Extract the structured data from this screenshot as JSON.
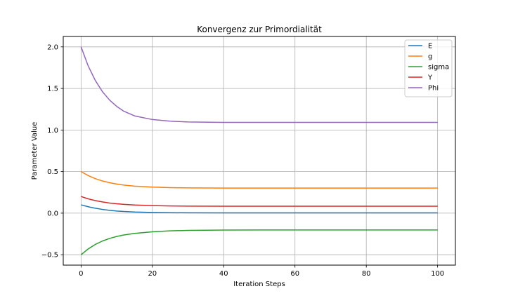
{
  "chart_data": {
    "type": "line",
    "title": "Konvergenz zur Primordialität",
    "xlabel": "Iteration Steps",
    "ylabel": "Parameter Value",
    "xlim": [
      -5,
      105
    ],
    "ylim": [
      -0.625,
      2.125
    ],
    "xticks": [
      0,
      20,
      40,
      60,
      80,
      100
    ],
    "yticks": [
      -0.5,
      0.0,
      0.5,
      1.0,
      1.5,
      2.0
    ],
    "xtick_labels": [
      "0",
      "20",
      "40",
      "60",
      "80",
      "100"
    ],
    "ytick_labels": [
      "−0.5",
      "0.0",
      "0.5",
      "1.0",
      "1.5",
      "2.0"
    ],
    "grid": true,
    "legend_position": "top-right",
    "x": [
      0,
      2,
      4,
      6,
      8,
      10,
      12,
      15,
      20,
      25,
      30,
      40,
      50,
      60,
      70,
      80,
      90,
      100
    ],
    "series": [
      {
        "name": "E",
        "color": "#1f77b4",
        "values": [
          0.1,
          0.077,
          0.059,
          0.045,
          0.034,
          0.026,
          0.02,
          0.014,
          0.009,
          0.006,
          0.004,
          0.003,
          0.003,
          0.003,
          0.003,
          0.003,
          0.003,
          0.003
        ]
      },
      {
        "name": "g",
        "color": "#ff7f0e",
        "values": [
          0.5,
          0.452,
          0.415,
          0.387,
          0.366,
          0.35,
          0.338,
          0.325,
          0.313,
          0.307,
          0.304,
          0.302,
          0.302,
          0.302,
          0.302,
          0.302,
          0.302,
          0.302
        ]
      },
      {
        "name": "sigma",
        "color": "#2ca02c",
        "values": [
          -0.5,
          -0.43,
          -0.376,
          -0.335,
          -0.304,
          -0.28,
          -0.262,
          -0.243,
          -0.224,
          -0.213,
          -0.207,
          -0.203,
          -0.202,
          -0.202,
          -0.202,
          -0.202,
          -0.202,
          -0.202
        ]
      },
      {
        "name": "Y",
        "color": "#d62728",
        "values": [
          0.2,
          0.172,
          0.151,
          0.135,
          0.122,
          0.113,
          0.106,
          0.098,
          0.091,
          0.087,
          0.085,
          0.084,
          0.084,
          0.084,
          0.084,
          0.084,
          0.084,
          0.084
        ]
      },
      {
        "name": "Phi",
        "color": "#9467bd",
        "values": [
          2.0,
          1.77,
          1.595,
          1.461,
          1.36,
          1.284,
          1.226,
          1.17,
          1.126,
          1.106,
          1.097,
          1.092,
          1.092,
          1.092,
          1.092,
          1.092,
          1.092,
          1.092
        ]
      }
    ]
  }
}
